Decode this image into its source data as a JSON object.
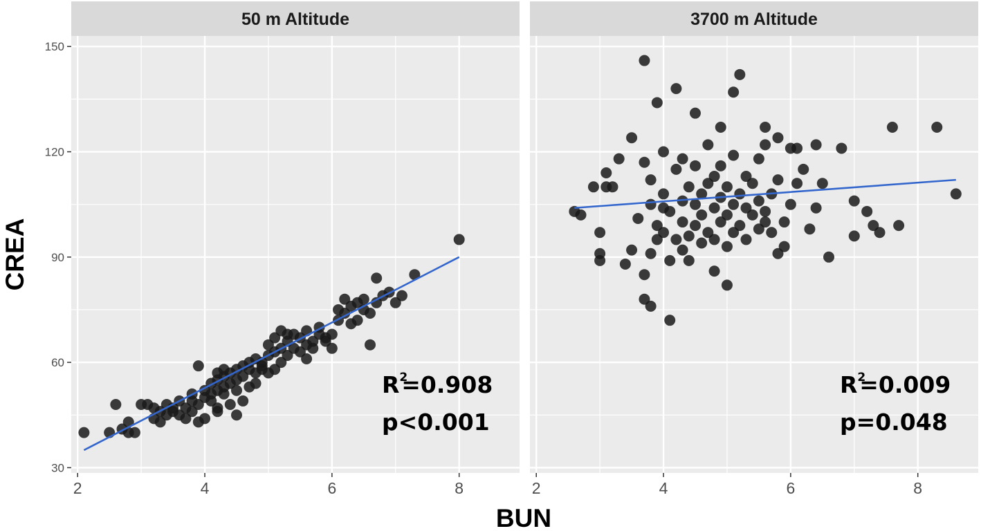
{
  "chart_data": {
    "type": "scatter",
    "xlabel": "BUN",
    "ylabel": "CREA",
    "x_ticks": [
      2,
      4,
      6,
      8
    ],
    "y_ticks": [
      30,
      60,
      90,
      120,
      150
    ],
    "xlim": [
      1.9,
      8.95
    ],
    "ylim": [
      28.5,
      153
    ],
    "grid": true,
    "colors": {
      "panel_bg": "#ebebeb",
      "strip_bg": "#d9d9d9",
      "grid": "#ffffff",
      "points": "#1a1a1a",
      "fit_line": "#3366cc"
    },
    "panels": [
      {
        "strip": "50 m Altitude",
        "r2_prefix": "R",
        "r2_sup": "2",
        "r2_value": "=0.908",
        "p_label": "p<0.001",
        "fit": {
          "x": [
            2.1,
            8.0
          ],
          "y": [
            35,
            90
          ]
        },
        "points": [
          [
            2.1,
            40
          ],
          [
            2.6,
            48
          ],
          [
            2.5,
            40
          ],
          [
            2.7,
            41
          ],
          [
            2.8,
            43
          ],
          [
            2.9,
            40
          ],
          [
            2.8,
            40
          ],
          [
            3.0,
            48
          ],
          [
            3.1,
            48
          ],
          [
            3.2,
            47
          ],
          [
            3.2,
            44
          ],
          [
            3.3,
            46
          ],
          [
            3.4,
            45
          ],
          [
            3.4,
            48
          ],
          [
            3.5,
            46
          ],
          [
            3.5,
            47
          ],
          [
            3.6,
            45
          ],
          [
            3.6,
            49
          ],
          [
            3.7,
            47
          ],
          [
            3.7,
            44
          ],
          [
            3.8,
            46
          ],
          [
            3.8,
            49
          ],
          [
            3.8,
            51
          ],
          [
            3.9,
            43
          ],
          [
            3.9,
            48
          ],
          [
            4.0,
            44
          ],
          [
            4.0,
            50
          ],
          [
            4.0,
            52
          ],
          [
            4.1,
            49
          ],
          [
            4.1,
            54
          ],
          [
            4.1,
            51
          ],
          [
            4.2,
            47
          ],
          [
            4.2,
            52
          ],
          [
            4.2,
            55
          ],
          [
            4.2,
            57
          ],
          [
            4.3,
            51
          ],
          [
            4.3,
            53
          ],
          [
            4.3,
            56
          ],
          [
            4.3,
            58
          ],
          [
            4.4,
            54
          ],
          [
            4.4,
            57
          ],
          [
            4.4,
            48
          ],
          [
            4.5,
            52
          ],
          [
            4.5,
            55
          ],
          [
            4.5,
            58
          ],
          [
            4.6,
            56
          ],
          [
            4.6,
            59
          ],
          [
            4.7,
            53
          ],
          [
            4.7,
            58
          ],
          [
            4.7,
            60
          ],
          [
            4.8,
            54
          ],
          [
            4.8,
            57
          ],
          [
            4.8,
            61
          ],
          [
            4.9,
            58
          ],
          [
            4.9,
            60
          ],
          [
            5.0,
            57
          ],
          [
            5.0,
            62
          ],
          [
            5.0,
            65
          ],
          [
            5.1,
            58
          ],
          [
            5.1,
            63
          ],
          [
            5.1,
            67
          ],
          [
            5.2,
            60
          ],
          [
            5.2,
            64
          ],
          [
            5.2,
            69
          ],
          [
            5.3,
            62
          ],
          [
            5.3,
            66
          ],
          [
            5.4,
            64
          ],
          [
            5.4,
            68
          ],
          [
            5.5,
            63
          ],
          [
            5.5,
            67
          ],
          [
            5.6,
            65
          ],
          [
            5.6,
            69
          ],
          [
            5.7,
            66
          ],
          [
            5.7,
            64
          ],
          [
            5.8,
            68
          ],
          [
            5.8,
            70
          ],
          [
            5.9,
            67
          ],
          [
            5.9,
            66
          ],
          [
            6.0,
            68
          ],
          [
            6.0,
            64
          ],
          [
            6.1,
            72
          ],
          [
            6.1,
            75
          ],
          [
            6.2,
            74
          ],
          [
            6.2,
            78
          ],
          [
            6.3,
            76
          ],
          [
            6.4,
            72
          ],
          [
            6.4,
            77
          ],
          [
            6.5,
            75
          ],
          [
            6.5,
            78
          ],
          [
            6.6,
            74
          ],
          [
            6.7,
            77
          ],
          [
            6.7,
            84
          ],
          [
            6.8,
            79
          ],
          [
            6.9,
            80
          ],
          [
            7.0,
            77
          ],
          [
            7.1,
            79
          ],
          [
            7.3,
            85
          ],
          [
            6.6,
            65
          ],
          [
            6.3,
            71
          ],
          [
            8.0,
            95
          ],
          [
            3.9,
            59
          ],
          [
            4.2,
            46
          ],
          [
            4.5,
            45
          ],
          [
            4.9,
            59
          ],
          [
            5.3,
            68
          ],
          [
            5.6,
            61
          ],
          [
            3.3,
            43
          ],
          [
            4.6,
            49
          ]
        ]
      },
      {
        "strip": "3700 m Altitude",
        "r2_prefix": "R",
        "r2_sup": "2",
        "r2_value": "=0.009",
        "p_label": "p=0.048",
        "fit": {
          "x": [
            2.6,
            8.6
          ],
          "y": [
            104,
            112
          ]
        },
        "points": [
          [
            2.6,
            103
          ],
          [
            2.7,
            102
          ],
          [
            2.9,
            110
          ],
          [
            3.0,
            89
          ],
          [
            3.0,
            91
          ],
          [
            3.0,
            97
          ],
          [
            3.1,
            110
          ],
          [
            3.1,
            114
          ],
          [
            3.2,
            110
          ],
          [
            3.4,
            88
          ],
          [
            3.5,
            92
          ],
          [
            3.6,
            101
          ],
          [
            3.7,
            78
          ],
          [
            3.7,
            85
          ],
          [
            3.7,
            117
          ],
          [
            3.7,
            146
          ],
          [
            3.8,
            76
          ],
          [
            3.8,
            91
          ],
          [
            3.8,
            105
          ],
          [
            3.8,
            112
          ],
          [
            3.9,
            95
          ],
          [
            3.9,
            99
          ],
          [
            3.9,
            134
          ],
          [
            4.0,
            97
          ],
          [
            4.0,
            104
          ],
          [
            4.0,
            108
          ],
          [
            4.0,
            120
          ],
          [
            4.1,
            72
          ],
          [
            4.1,
            89
          ],
          [
            4.1,
            103
          ],
          [
            4.2,
            95
          ],
          [
            4.2,
            115
          ],
          [
            4.2,
            138
          ],
          [
            4.3,
            92
          ],
          [
            4.3,
            100
          ],
          [
            4.3,
            106
          ],
          [
            4.3,
            118
          ],
          [
            4.4,
            89
          ],
          [
            4.4,
            96
          ],
          [
            4.4,
            110
          ],
          [
            4.5,
            99
          ],
          [
            4.5,
            105
          ],
          [
            4.5,
            116
          ],
          [
            4.5,
            131
          ],
          [
            4.6,
            94
          ],
          [
            4.6,
            102
          ],
          [
            4.6,
            108
          ],
          [
            4.7,
            97
          ],
          [
            4.7,
            111
          ],
          [
            4.7,
            122
          ],
          [
            4.8,
            86
          ],
          [
            4.8,
            95
          ],
          [
            4.8,
            104
          ],
          [
            4.8,
            113
          ],
          [
            4.9,
            100
          ],
          [
            4.9,
            107
          ],
          [
            4.9,
            116
          ],
          [
            5.0,
            82
          ],
          [
            5.0,
            93
          ],
          [
            5.0,
            102
          ],
          [
            5.0,
            110
          ],
          [
            5.1,
            97
          ],
          [
            5.1,
            105
          ],
          [
            5.1,
            119
          ],
          [
            5.1,
            137
          ],
          [
            5.2,
            99
          ],
          [
            5.2,
            108
          ],
          [
            5.2,
            142
          ],
          [
            5.3,
            95
          ],
          [
            5.3,
            104
          ],
          [
            5.3,
            113
          ],
          [
            5.4,
            102
          ],
          [
            5.4,
            111
          ],
          [
            5.5,
            98
          ],
          [
            5.5,
            106
          ],
          [
            5.5,
            118
          ],
          [
            5.6,
            103
          ],
          [
            5.6,
            100
          ],
          [
            5.6,
            122
          ],
          [
            5.7,
            97
          ],
          [
            5.7,
            108
          ],
          [
            5.8,
            91
          ],
          [
            5.8,
            112
          ],
          [
            5.8,
            124
          ],
          [
            5.9,
            100
          ],
          [
            5.9,
            93
          ],
          [
            6.0,
            105
          ],
          [
            6.0,
            121
          ],
          [
            6.1,
            111
          ],
          [
            6.2,
            115
          ],
          [
            6.3,
            98
          ],
          [
            6.4,
            104
          ],
          [
            6.4,
            122
          ],
          [
            6.5,
            111
          ],
          [
            6.6,
            90
          ],
          [
            6.8,
            121
          ],
          [
            7.0,
            96
          ],
          [
            7.0,
            106
          ],
          [
            7.2,
            103
          ],
          [
            7.3,
            99
          ],
          [
            7.4,
            97
          ],
          [
            7.6,
            127
          ],
          [
            7.7,
            99
          ],
          [
            8.3,
            127
          ],
          [
            8.6,
            108
          ],
          [
            3.3,
            118
          ],
          [
            3.5,
            124
          ],
          [
            4.9,
            127
          ],
          [
            5.6,
            127
          ],
          [
            6.1,
            121
          ]
        ]
      }
    ]
  }
}
